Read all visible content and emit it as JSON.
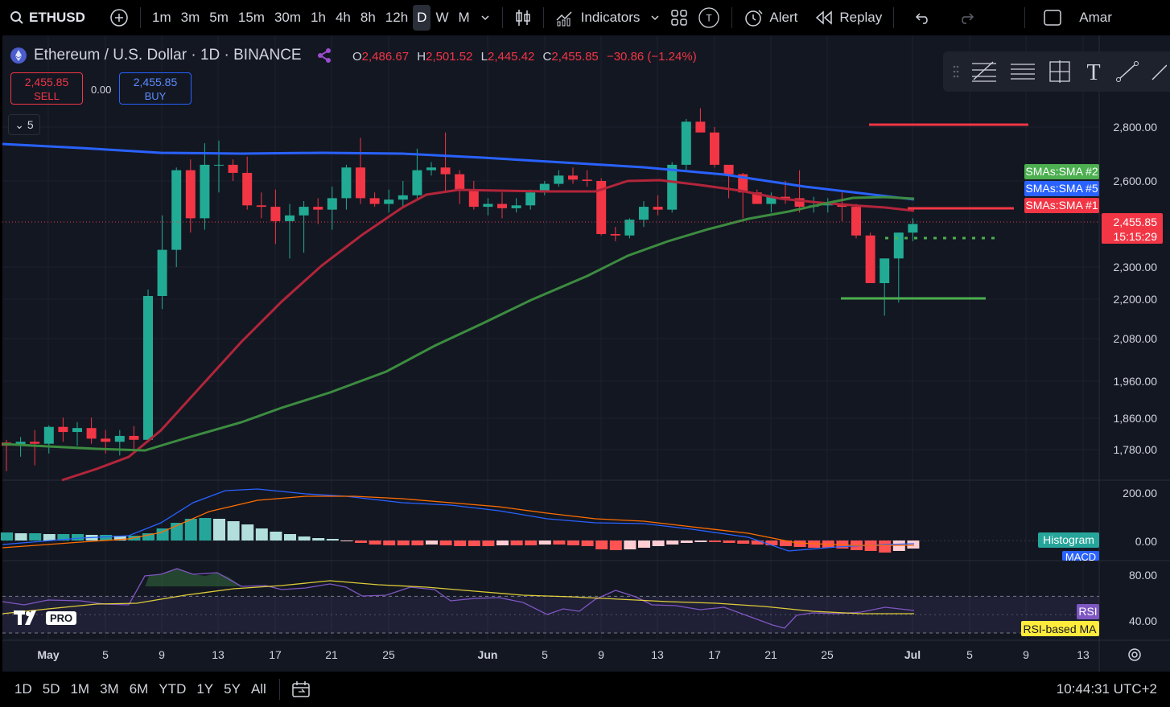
{
  "toolbar": {
    "symbol": "ETHUSD",
    "intervals": [
      "1m",
      "3m",
      "5m",
      "15m",
      "30m",
      "1h",
      "4h",
      "8h",
      "12h",
      "D",
      "W",
      "M"
    ],
    "active_interval": "D",
    "indicators_label": "Indicators",
    "alert_label": "Alert",
    "replay_label": "Replay",
    "user_label": "Amar"
  },
  "legend": {
    "title": "Ethereum / U.S. Dollar · 1D · BINANCE",
    "o_label": "O",
    "o": "2,486.67",
    "h_label": "H",
    "h": "2,501.52",
    "l_label": "L",
    "l": "2,445.42",
    "c_label": "C",
    "c": "2,455.85",
    "change": "−30.86 (−1.24%)",
    "sell_price": "2,455.85",
    "sell_label": "SELL",
    "buy_price": "2,455.85",
    "buy_label": "BUY",
    "spread": "0.00",
    "collapsed_count": "5"
  },
  "price_axis": [
    "2,800.00",
    "2,600.00",
    "2,300.00",
    "2,200.00",
    "2,080.00",
    "1,960.00",
    "1,860.00",
    "1,780.00"
  ],
  "last_price": {
    "value": "2,455.85",
    "countdown": "15:15:29"
  },
  "series_labels": {
    "sma2": "SMAs:SMA #2",
    "sma5": "SMAs:SMA #5",
    "sma1": "SMAs:SMA #1"
  },
  "macd_pane": {
    "axis": [
      "200.00",
      "0.00"
    ],
    "histogram_label": "Histogram",
    "macd_label": "MACD"
  },
  "rsi_pane": {
    "axis": [
      "80.00",
      "40.00"
    ],
    "rsi_label": "RSI",
    "ma_label": "RSI-based MA"
  },
  "time_axis": [
    "May",
    "5",
    "9",
    "13",
    "17",
    "21",
    "25",
    "Jun",
    "5",
    "9",
    "13",
    "17",
    "21",
    "25",
    "Jul",
    "5",
    "9",
    "13"
  ],
  "watermark": "PRO",
  "bottombar": {
    "ranges": [
      "1D",
      "5D",
      "1M",
      "3M",
      "6M",
      "YTD",
      "1Y",
      "5Y",
      "All"
    ],
    "clock": "10:44:31 UTC+2"
  },
  "colors": {
    "up": "#22ab94",
    "down": "#f23645",
    "sma_blue": "#2962ff",
    "sma_green": "#4caf50",
    "sma_red": "#f23645",
    "bg": "#131722"
  }
}
